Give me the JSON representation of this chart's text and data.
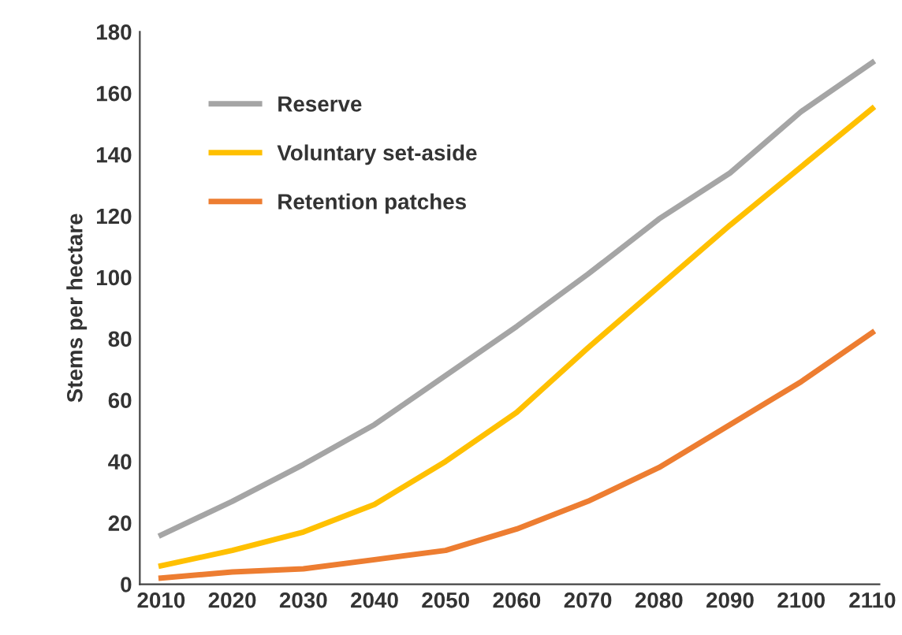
{
  "chart_data": {
    "type": "line",
    "ylabel": "Stems per hectare",
    "categories": [
      "2010",
      "2020",
      "2030",
      "2040",
      "2050",
      "2060",
      "2070",
      "2080",
      "2090",
      "2100",
      "2110"
    ],
    "series": [
      {
        "name": "Reserve",
        "color": "#a5a5a5",
        "values": [
          16,
          27,
          39,
          52,
          68,
          84,
          101,
          119,
          134,
          154,
          170
        ]
      },
      {
        "name": "Voluntary set-aside",
        "color": "#ffc000",
        "values": [
          6,
          11,
          17,
          26,
          40,
          56,
          77,
          97,
          117,
          136,
          155
        ]
      },
      {
        "name": "Retention patches",
        "color": "#ed7d31",
        "values": [
          2,
          4,
          5,
          8,
          11,
          18,
          27,
          38,
          52,
          66,
          82
        ]
      }
    ],
    "ylim": [
      0,
      180
    ],
    "yticks": [
      0,
      20,
      40,
      60,
      80,
      100,
      120,
      140,
      160,
      180
    ],
    "grid": false,
    "legend": "top left",
    "marker": "none",
    "line_style": "solid"
  }
}
